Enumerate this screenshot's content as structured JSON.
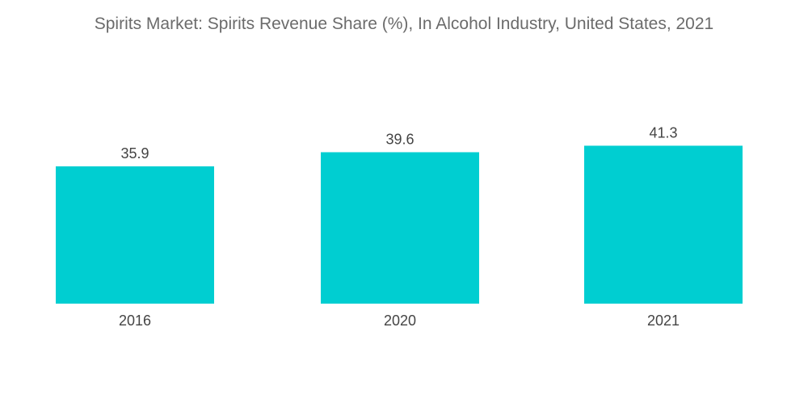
{
  "chart_data": {
    "type": "bar",
    "title": "Spirits Market: Spirits Revenue Share (%), In Alcohol Industry, United States, 2021",
    "categories": [
      "2016",
      "2020",
      "2021"
    ],
    "values": [
      35.9,
      39.6,
      41.3
    ],
    "xlabel": "",
    "ylabel": "",
    "ylim": [
      0,
      41.3
    ],
    "grid": false,
    "bar_color": "#00CED1"
  }
}
